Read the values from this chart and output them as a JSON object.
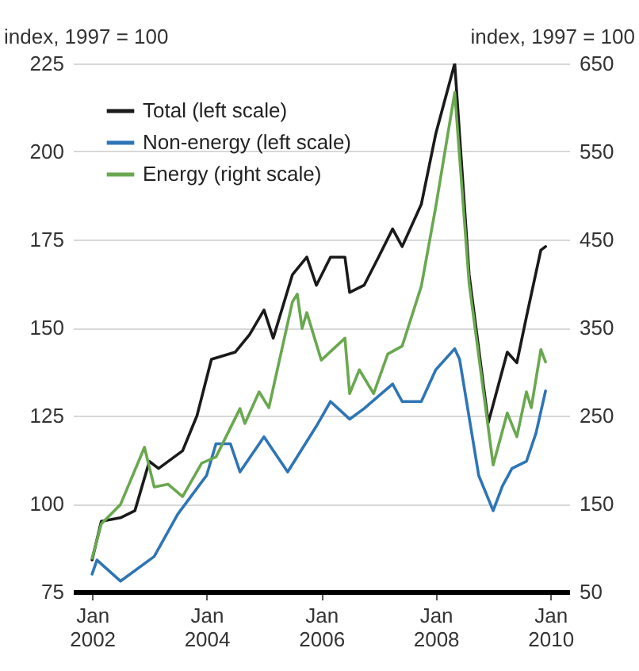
{
  "chart_data": {
    "type": "line",
    "ylabel": "index, 1997 = 100",
    "y2label": "index, 1997 = 100",
    "xlim": [
      "2001-09",
      "2010-05"
    ],
    "xticks": [
      {
        "value": "2002-01",
        "label": "Jan 2002"
      },
      {
        "value": "2004-01",
        "label": "Jan 2004"
      },
      {
        "value": "2006-01",
        "label": "Jan 2006"
      },
      {
        "value": "2008-01",
        "label": "Jan 2008"
      },
      {
        "value": "2010-01",
        "label": "Jan 2010"
      }
    ],
    "ylim": [
      75,
      225
    ],
    "yticks": [
      75,
      100,
      125,
      150,
      175,
      200,
      225
    ],
    "y2lim": [
      50,
      650
    ],
    "y2ticks": [
      50,
      150,
      250,
      350,
      450,
      550,
      650
    ],
    "grid": "y",
    "legend": "top left",
    "line_style": "solid",
    "series": [
      {
        "name": "Total (left scale)",
        "color": "#1a1a1a",
        "x": [
          "2002-01",
          "2002-03",
          "2002-07",
          "2002-10",
          "2003-01",
          "2003-03",
          "2003-08",
          "2003-11",
          "2004-02",
          "2004-07",
          "2004-10",
          "2005-01",
          "2005-03",
          "2005-07",
          "2005-10",
          "2005-12",
          "2006-03",
          "2006-06",
          "2006-07",
          "2006-10",
          "2007-01",
          "2007-04",
          "2007-06",
          "2007-10",
          "2008-01",
          "2008-05",
          "2008-08",
          "2008-12",
          "2009-04",
          "2009-06",
          "2009-08",
          "2009-11",
          "2009-12"
        ],
        "values": [
          84,
          95,
          96,
          98,
          112,
          110,
          115,
          125,
          141,
          143,
          148,
          155,
          147,
          165,
          170,
          162,
          170,
          170,
          160,
          162,
          170,
          178,
          173,
          185,
          205,
          225,
          165,
          123,
          143,
          140,
          153,
          172,
          173
        ]
      },
      {
        "name": "Non-energy (left scale)",
        "color": "#2e75b6",
        "x": [
          "2002-01",
          "2002-02",
          "2002-07",
          "2003-02",
          "2003-07",
          "2004-01",
          "2004-03",
          "2004-06",
          "2004-08",
          "2005-01",
          "2005-06",
          "2005-12",
          "2006-03",
          "2006-07",
          "2006-10",
          "2007-04",
          "2007-06",
          "2007-10",
          "2008-01",
          "2008-05",
          "2008-06",
          "2008-10",
          "2009-01",
          "2009-03",
          "2009-05",
          "2009-08",
          "2009-10",
          "2009-12"
        ],
        "values": [
          80,
          84,
          78,
          85,
          97,
          108,
          117,
          117,
          109,
          119,
          109,
          122,
          129,
          124,
          127,
          134,
          129,
          129,
          138,
          144,
          141,
          108,
          98,
          105,
          110,
          112,
          120,
          132
        ]
      },
      {
        "name": "Energy (right scale)",
        "color": "#6aa84f",
        "axis": "y2",
        "x": [
          "2002-01",
          "2002-03",
          "2002-07",
          "2002-12",
          "2003-02",
          "2003-05",
          "2003-08",
          "2003-12",
          "2004-03",
          "2004-08",
          "2004-09",
          "2004-12",
          "2005-02",
          "2005-07",
          "2005-08",
          "2005-09",
          "2005-10",
          "2006-01",
          "2006-06",
          "2006-07",
          "2006-09",
          "2006-12",
          "2007-03",
          "2007-06",
          "2007-10",
          "2008-01",
          "2008-05",
          "2008-08",
          "2009-01",
          "2009-04",
          "2009-06",
          "2009-08",
          "2009-09",
          "2009-11",
          "2009-12"
        ],
        "values": [
          88,
          127,
          149,
          214,
          169,
          172,
          158,
          196,
          203,
          258,
          241,
          277,
          259,
          379,
          388,
          349,
          367,
          313,
          338,
          275,
          302,
          275,
          320,
          329,
          397,
          487,
          617,
          400,
          194,
          253,
          226,
          277,
          259,
          325,
          311
        ]
      }
    ]
  }
}
